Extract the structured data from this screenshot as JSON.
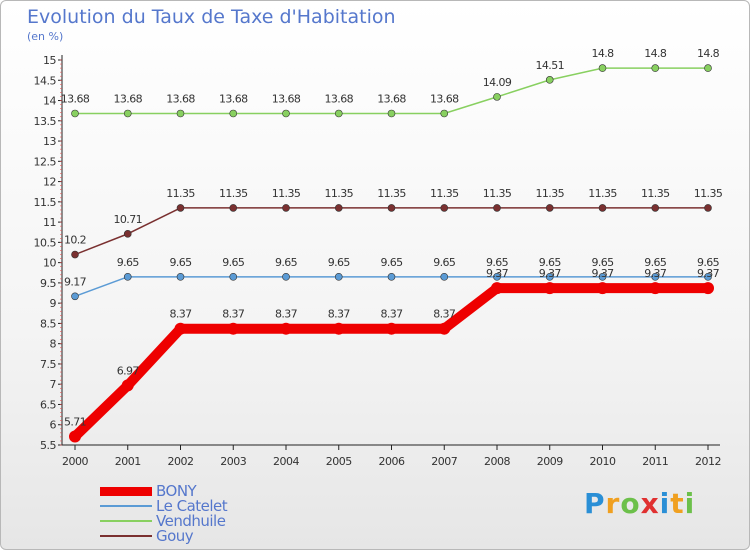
{
  "title": "Evolution du Taux de Taxe d'Habitation",
  "subtitle": "(en %)",
  "brand": {
    "text": "Proxiti",
    "letters": [
      {
        "ch": "P",
        "color": "#2a8fd6"
      },
      {
        "ch": "r",
        "color": "#f0a020"
      },
      {
        "ch": "o",
        "color": "#6cc04a"
      },
      {
        "ch": "x",
        "color": "#e03030"
      },
      {
        "ch": "i",
        "color": "#2a8fd6"
      },
      {
        "ch": "t",
        "color": "#f0a020"
      },
      {
        "ch": "i",
        "color": "#6cc04a"
      }
    ]
  },
  "chart_data": {
    "type": "line",
    "title": "Evolution du Taux de Taxe d'Habitation",
    "ylabel": "(en %)",
    "xlabel": "",
    "ylim": [
      5.5,
      15
    ],
    "yticks": [
      "5.5",
      "6",
      "6.5",
      "7",
      "7.5",
      "8",
      "8.5",
      "9",
      "9.5",
      "10",
      "10.5",
      "11",
      "11.5",
      "12",
      "12.5",
      "13",
      "13.5",
      "14",
      "14.5",
      "15"
    ],
    "x": [
      "2000",
      "2001",
      "2002",
      "2003",
      "2004",
      "2005",
      "2006",
      "2007",
      "2008",
      "2009",
      "2010",
      "2011",
      "2012"
    ],
    "grid": false,
    "legend_position": "bottom-left",
    "series": [
      {
        "name": "BONY",
        "color": "#ee0000",
        "style": "thick",
        "values": [
          5.71,
          6.97,
          8.37,
          8.37,
          8.37,
          8.37,
          8.37,
          8.37,
          9.37,
          9.37,
          9.37,
          9.37,
          9.37
        ],
        "labels": [
          "5.71",
          "6.97",
          "8.37",
          "8.37",
          "8.37",
          "8.37",
          "8.37",
          "8.37",
          "9.37",
          "9.37",
          "9.37",
          "9.37",
          "9.37"
        ]
      },
      {
        "name": "Le Catelet",
        "color": "#5b9bd5",
        "style": "thin",
        "values": [
          9.17,
          9.65,
          9.65,
          9.65,
          9.65,
          9.65,
          9.65,
          9.65,
          9.65,
          9.65,
          9.65,
          9.65,
          9.65
        ],
        "labels": [
          "9.17",
          "9.65",
          "9.65",
          "9.65",
          "9.65",
          "9.65",
          "9.65",
          "9.65",
          "9.65",
          "9.65",
          "9.65",
          "9.65",
          "9.65"
        ]
      },
      {
        "name": "Vendhuile",
        "color": "#88d060",
        "style": "thin",
        "values": [
          13.68,
          13.68,
          13.68,
          13.68,
          13.68,
          13.68,
          13.68,
          13.68,
          14.09,
          14.51,
          14.8,
          14.8,
          14.8
        ],
        "labels": [
          "13.68",
          "13.68",
          "13.68",
          "13.68",
          "13.68",
          "13.68",
          "13.68",
          "13.68",
          "14.09",
          "14.51",
          "14.8",
          "14.8",
          "14.8"
        ]
      },
      {
        "name": "Gouy",
        "color": "#7a3030",
        "style": "thin",
        "values": [
          10.2,
          10.71,
          11.35,
          11.35,
          11.35,
          11.35,
          11.35,
          11.35,
          11.35,
          11.35,
          11.35,
          11.35,
          11.35
        ],
        "labels": [
          "10.2",
          "10.71",
          "11.35",
          "11.35",
          "11.35",
          "11.35",
          "11.35",
          "11.35",
          "11.35",
          "11.35",
          "11.35",
          "11.35",
          "11.35"
        ]
      }
    ]
  }
}
